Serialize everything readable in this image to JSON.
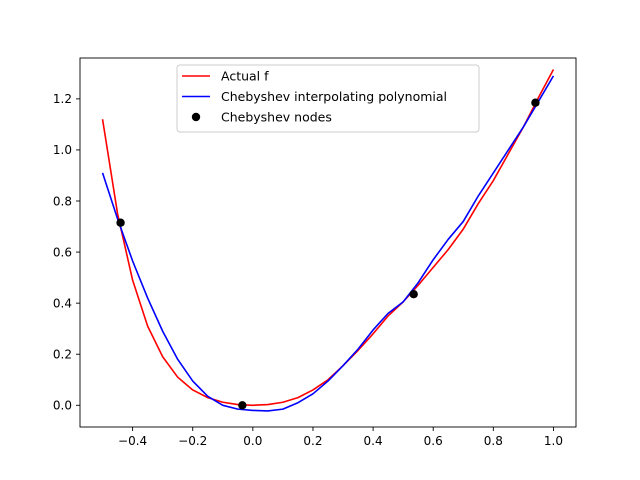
{
  "chart_data": {
    "type": "line",
    "title": "",
    "xlabel": "",
    "ylabel": "",
    "xlim": [
      -0.575,
      1.075
    ],
    "ylim": [
      -0.085,
      1.36
    ],
    "xticks": [
      -0.4,
      -0.2,
      0.0,
      0.2,
      0.4,
      0.6,
      0.8,
      1.0
    ],
    "xtick_labels": [
      "−0.4",
      "−0.2",
      "0.0",
      "0.2",
      "0.4",
      "0.6",
      "0.8",
      "1.0"
    ],
    "yticks": [
      0.0,
      0.2,
      0.4,
      0.6,
      0.8,
      1.0,
      1.2
    ],
    "ytick_labels": [
      "0.0",
      "0.2",
      "0.4",
      "0.6",
      "0.8",
      "1.0",
      "1.2"
    ],
    "grid": false,
    "legend_position": "upper-center",
    "series": [
      {
        "name": "Actual f",
        "kind": "line",
        "color": "#ff0000",
        "x": [
          -0.5,
          -0.45,
          -0.4,
          -0.35,
          -0.3,
          -0.25,
          -0.2,
          -0.15,
          -0.1,
          -0.05,
          0.0,
          0.05,
          0.1,
          0.15,
          0.2,
          0.25,
          0.3,
          0.35,
          0.4,
          0.45,
          0.5,
          0.55,
          0.6,
          0.65,
          0.7,
          0.75,
          0.8,
          0.85,
          0.9,
          0.95,
          1.0
        ],
        "y": [
          1.12,
          0.75,
          0.49,
          0.31,
          0.19,
          0.11,
          0.06,
          0.03,
          0.012,
          0.003,
          0.0,
          0.003,
          0.012,
          0.03,
          0.06,
          0.1,
          0.155,
          0.215,
          0.28,
          0.35,
          0.405,
          0.47,
          0.54,
          0.61,
          0.69,
          0.79,
          0.88,
          0.985,
          1.09,
          1.205,
          1.315
        ]
      },
      {
        "name": "Chebyshev interpolating polynomial",
        "kind": "line",
        "color": "#0000ff",
        "x": [
          -0.5,
          -0.45,
          -0.4,
          -0.35,
          -0.3,
          -0.25,
          -0.2,
          -0.15,
          -0.1,
          -0.05,
          0.0,
          0.05,
          0.1,
          0.15,
          0.2,
          0.25,
          0.3,
          0.35,
          0.4,
          0.45,
          0.5,
          0.55,
          0.6,
          0.65,
          0.7,
          0.75,
          0.8,
          0.85,
          0.9,
          0.95,
          1.0
        ],
        "y": [
          0.91,
          0.73,
          0.565,
          0.42,
          0.29,
          0.18,
          0.095,
          0.035,
          0.0,
          -0.015,
          -0.02,
          -0.022,
          -0.015,
          0.01,
          0.045,
          0.095,
          0.155,
          0.22,
          0.295,
          0.36,
          0.405,
          0.48,
          0.57,
          0.65,
          0.72,
          0.82,
          0.91,
          1.0,
          1.09,
          1.19,
          1.29
        ]
      },
      {
        "name": "Chebyshev nodes",
        "kind": "scatter",
        "color": "#000000",
        "x": [
          -0.44,
          -0.035,
          0.535,
          0.94
        ],
        "y": [
          0.715,
          0.0,
          0.435,
          1.185
        ]
      }
    ]
  }
}
